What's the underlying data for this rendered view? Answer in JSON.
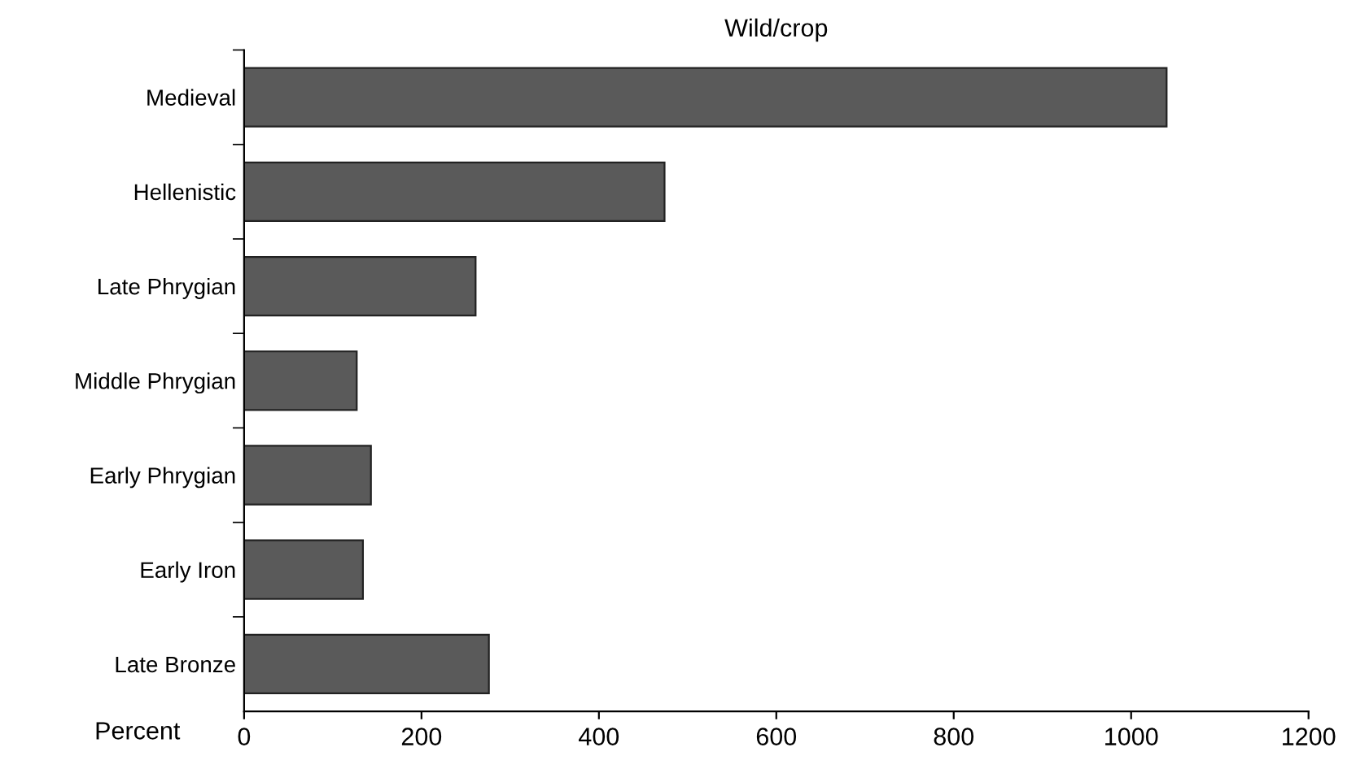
{
  "chart_data": {
    "type": "bar",
    "orientation": "horizontal",
    "title": "Wild/crop",
    "xlabel": "Percent",
    "categories": [
      "Medieval",
      "Hellenistic",
      "Late Phrygian",
      "Middle Phrygian",
      "Early Phrygian",
      "Early Iron",
      "Late Bronze"
    ],
    "values": [
      1040,
      474,
      261,
      127,
      143,
      134,
      276
    ],
    "color": "#5a5a5a",
    "xlim": [
      0,
      1200
    ],
    "xticks": [
      0,
      200,
      400,
      600,
      800,
      1000,
      1200
    ],
    "grid": false,
    "legend": false
  }
}
